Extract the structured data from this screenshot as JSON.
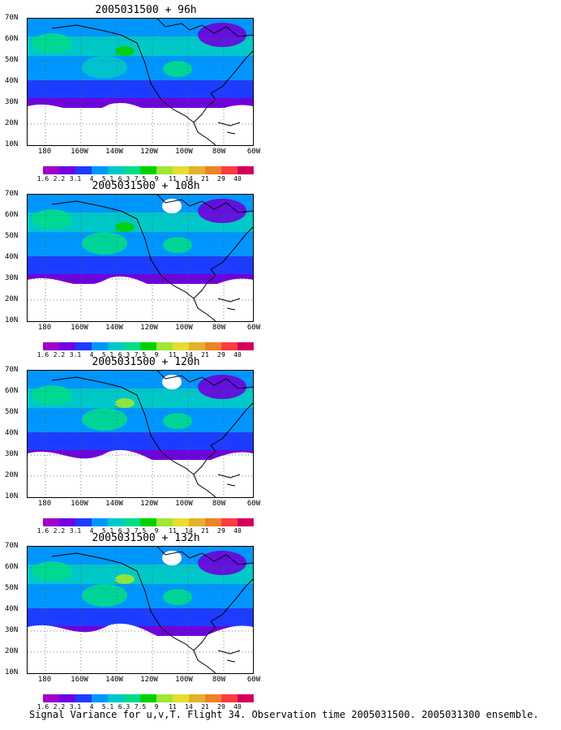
{
  "panels": [
    {
      "title": "2005031500 + 96h",
      "warm": 0.0
    },
    {
      "title": "2005031500 + 108h",
      "warm": 0.15
    },
    {
      "title": "2005031500 + 120h",
      "warm": 0.3
    },
    {
      "title": "2005031500 + 132h",
      "warm": 0.45
    }
  ],
  "lat_labels": [
    "70N",
    "60N",
    "50N",
    "40N",
    "30N",
    "20N",
    "10N"
  ],
  "lon_labels": [
    "180",
    "160W",
    "140W",
    "120W",
    "100W",
    "80W",
    "60W"
  ],
  "colorbar": {
    "labels": [
      "1.6",
      "2.2",
      "3.1",
      "4",
      "5.1",
      "6.3",
      "7.5",
      "9",
      "11",
      "14",
      "21",
      "29",
      "40"
    ],
    "colors": [
      "#a000c8",
      "#6e00dc",
      "#1e3cff",
      "#0096ff",
      "#00c8c8",
      "#00dc8c",
      "#00d200",
      "#a0e632",
      "#e6dc32",
      "#e6af2d",
      "#f08228",
      "#fa3c3c",
      "#d2005a"
    ]
  },
  "caption": "Signal Variance for u,v,T. Flight 34. Observation time 2005031500. 2005031300 ensemble."
}
